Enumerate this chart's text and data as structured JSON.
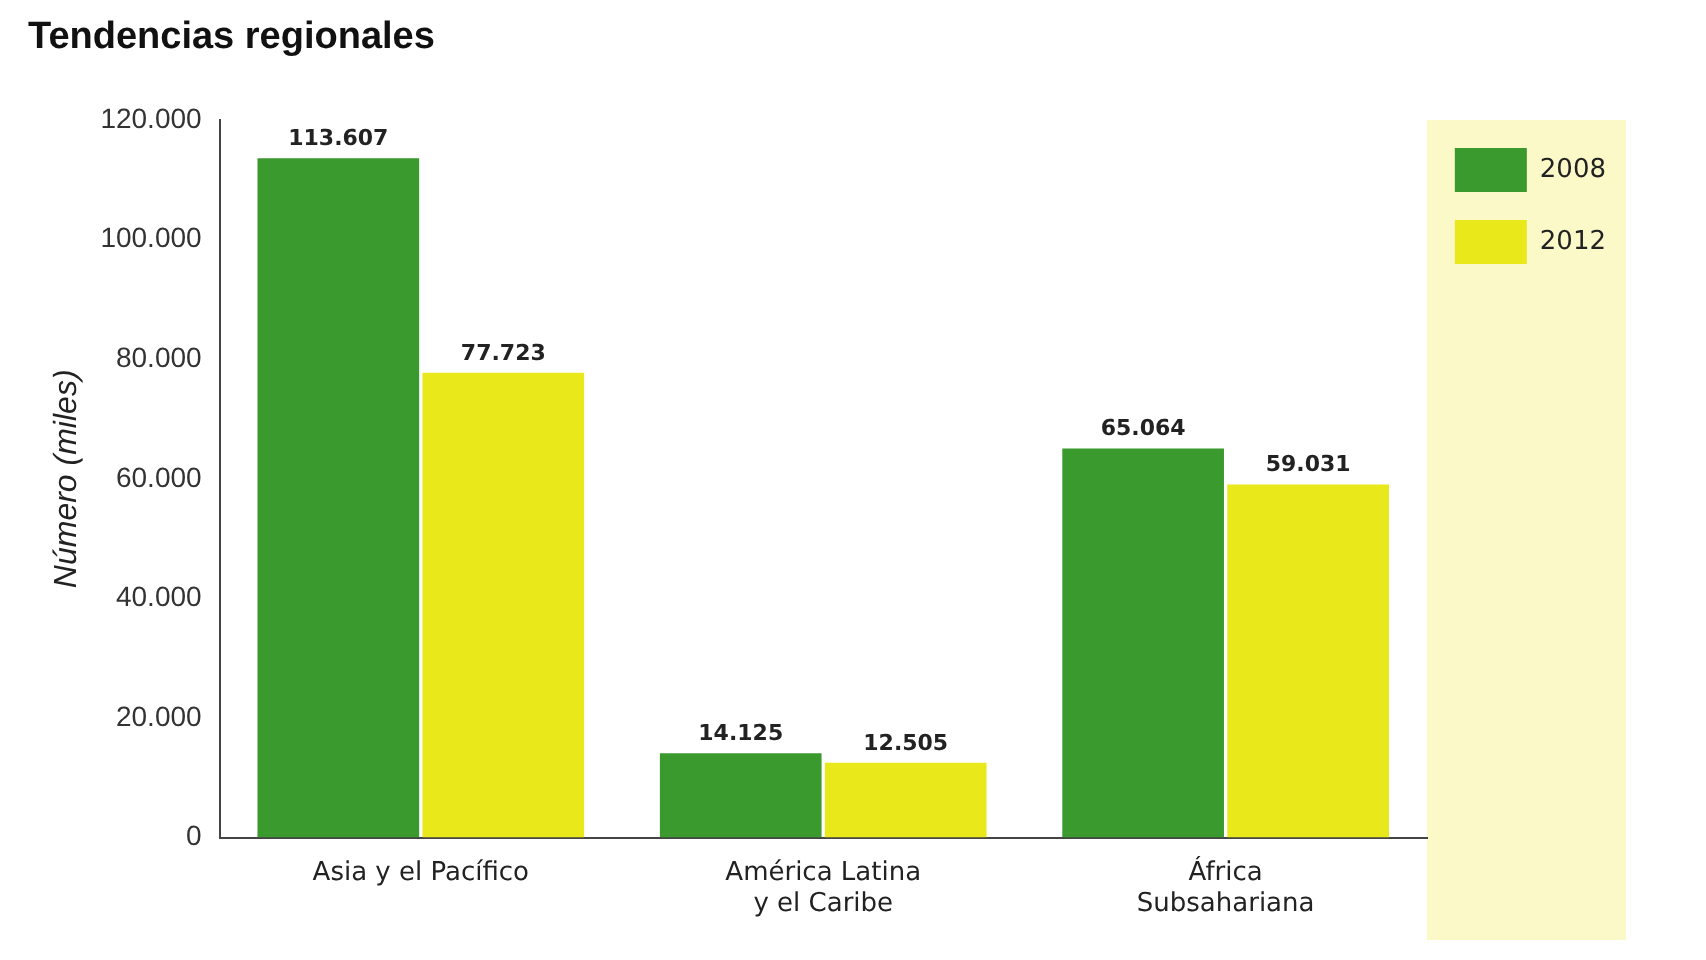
{
  "chart_data": {
    "type": "bar",
    "title": "Tendencias regionales",
    "ylabel": "Número (miles)",
    "categories": [
      "Asia y el Pacífico",
      "América Latina\ny el Caribe",
      "África\nSubsahariana"
    ],
    "series": [
      {
        "name": "2008",
        "color": "#3a9a2e",
        "values": [
          113607,
          14125,
          65064
        ],
        "value_labels": [
          "113.607",
          "14.125",
          "65.064"
        ]
      },
      {
        "name": "2012",
        "color": "#e8e81a",
        "values": [
          77723,
          12505,
          59031
        ],
        "value_labels": [
          "77.723",
          "12.505",
          "59.031"
        ]
      }
    ],
    "ylim": [
      0,
      120000
    ],
    "yticks": [
      {
        "value": 0,
        "label": "0"
      },
      {
        "value": 20000,
        "label": "20.000"
      },
      {
        "value": 40000,
        "label": "40.000"
      },
      {
        "value": 60000,
        "label": "60.000"
      },
      {
        "value": 80000,
        "label": "80.000"
      },
      {
        "value": 100000,
        "label": "100.000"
      },
      {
        "value": 120000,
        "label": "120.000"
      }
    ],
    "grid": false,
    "legend": "top right"
  }
}
